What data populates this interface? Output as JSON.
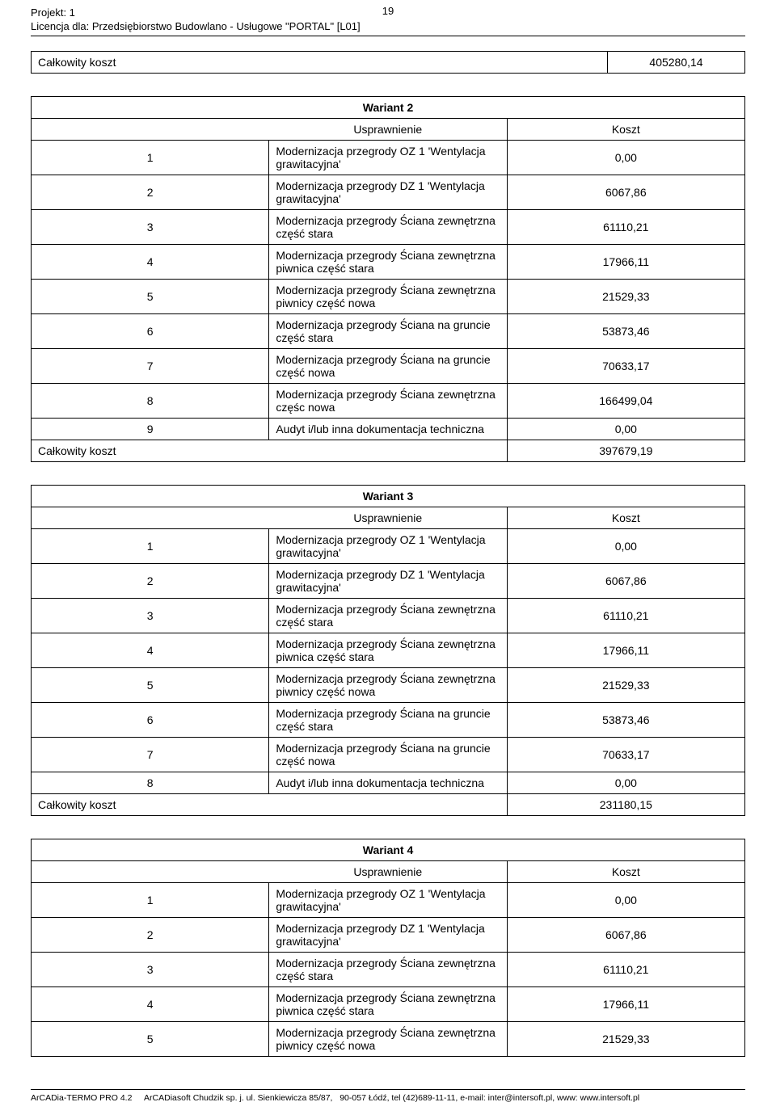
{
  "header": {
    "projekt": "Projekt: 1",
    "licencja": "Licencja dla: Przedsiębiorstwo Budowlano - Usługowe \"PORTAL\" [L01]",
    "page_num": "19"
  },
  "top_total": {
    "label": "Całkowity koszt",
    "value": "405280,14"
  },
  "wariant2": {
    "title": "Wariant 2",
    "usprawnienie": "Usprawnienie",
    "koszt": "Koszt",
    "rows": [
      {
        "n": "1",
        "d": "Modernizacja przegrody OZ 1 'Wentylacja grawitacyjna'",
        "v": "0,00"
      },
      {
        "n": "2",
        "d": "Modernizacja przegrody DZ 1 'Wentylacja grawitacyjna'",
        "v": "6067,86"
      },
      {
        "n": "3",
        "d": "Modernizacja przegrody Ściana zewnętrzna część stara",
        "v": "61110,21"
      },
      {
        "n": "4",
        "d": "Modernizacja przegrody Ściana zewnętrzna piwnica część stara",
        "v": "17966,11"
      },
      {
        "n": "5",
        "d": "Modernizacja przegrody Ściana zewnętrzna piwnicy część nowa",
        "v": "21529,33"
      },
      {
        "n": "6",
        "d": "Modernizacja przegrody Ściana na gruncie część stara",
        "v": "53873,46"
      },
      {
        "n": "7",
        "d": "Modernizacja przegrody Ściana na gruncie część nowa",
        "v": "70633,17"
      },
      {
        "n": "8",
        "d": "Modernizacja przegrody Ściana zewnętrzna częśc nowa",
        "v": "166499,04"
      },
      {
        "n": "9",
        "d": "Audyt i/lub inna dokumentacja techniczna",
        "v": "0,00"
      }
    ],
    "total_label": "Całkowity koszt",
    "total_value": "397679,19"
  },
  "wariant3": {
    "title": "Wariant 3",
    "usprawnienie": "Usprawnienie",
    "koszt": "Koszt",
    "rows": [
      {
        "n": "1",
        "d": "Modernizacja przegrody OZ 1 'Wentylacja grawitacyjna'",
        "v": "0,00"
      },
      {
        "n": "2",
        "d": "Modernizacja przegrody DZ 1 'Wentylacja grawitacyjna'",
        "v": "6067,86"
      },
      {
        "n": "3",
        "d": "Modernizacja przegrody Ściana zewnętrzna część stara",
        "v": "61110,21"
      },
      {
        "n": "4",
        "d": "Modernizacja przegrody Ściana zewnętrzna piwnica część stara",
        "v": "17966,11"
      },
      {
        "n": "5",
        "d": "Modernizacja przegrody Ściana zewnętrzna piwnicy część nowa",
        "v": "21529,33"
      },
      {
        "n": "6",
        "d": "Modernizacja przegrody Ściana na gruncie część stara",
        "v": "53873,46"
      },
      {
        "n": "7",
        "d": "Modernizacja przegrody Ściana na gruncie część nowa",
        "v": "70633,17"
      },
      {
        "n": "8",
        "d": "Audyt i/lub inna dokumentacja techniczna",
        "v": "0,00"
      }
    ],
    "total_label": "Całkowity koszt",
    "total_value": "231180,15"
  },
  "wariant4": {
    "title": "Wariant 4",
    "usprawnienie": "Usprawnienie",
    "koszt": "Koszt",
    "rows": [
      {
        "n": "1",
        "d": "Modernizacja przegrody OZ 1 'Wentylacja grawitacyjna'",
        "v": "0,00"
      },
      {
        "n": "2",
        "d": "Modernizacja przegrody DZ 1 'Wentylacja grawitacyjna'",
        "v": "6067,86"
      },
      {
        "n": "3",
        "d": "Modernizacja przegrody Ściana zewnętrzna część stara",
        "v": "61110,21"
      },
      {
        "n": "4",
        "d": "Modernizacja przegrody Ściana zewnętrzna piwnica część stara",
        "v": "17966,11"
      },
      {
        "n": "5",
        "d": "Modernizacja przegrody Ściana zewnętrzna piwnicy część nowa",
        "v": "21529,33"
      }
    ]
  },
  "footer": {
    "text": "ArCADia-TERMO PRO 4.2     ArCADiasoft Chudzik sp. j. ul. Sienkiewicza 85/87,   90-057 Łódź, tel (42)689-11-11, e-mail: inter@intersoft.pl, www: www.intersoft.pl"
  }
}
